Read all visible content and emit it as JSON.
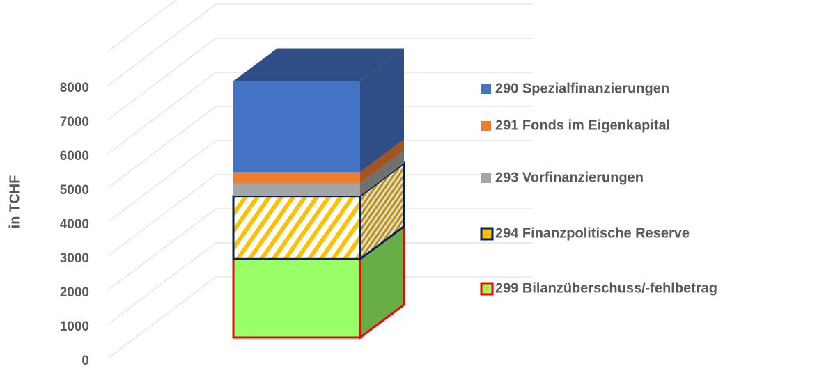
{
  "chart_data": {
    "type": "bar",
    "stacked": true,
    "y_label": "in TCHF",
    "ylim": [
      0,
      8000
    ],
    "yticks": [
      0,
      1000,
      2000,
      3000,
      4000,
      5000,
      6000,
      7000,
      8000
    ],
    "grid": true,
    "legend": "right",
    "categories": [
      null
    ],
    "series": [
      {
        "name": "299 Bilanzüberschuss/-fehlbetrag",
        "color": "#99ff66",
        "border": "#ff0000",
        "values": [
          2300
        ]
      },
      {
        "name": "294 Finanzpolitische Reserve",
        "color": "#ffc000",
        "border": "#002060",
        "pattern": "hatch",
        "values": [
          1850
        ]
      },
      {
        "name": "293 Vorfinanzierungen",
        "color": "#a5a5a5",
        "values": [
          370
        ]
      },
      {
        "name": "291 Fonds im Eigenkapital",
        "color": "#ed7d31",
        "values": [
          330
        ]
      },
      {
        "name": "290 Spezialfinanzierungen",
        "color": "#4472c4",
        "values": [
          2670
        ]
      }
    ]
  }
}
